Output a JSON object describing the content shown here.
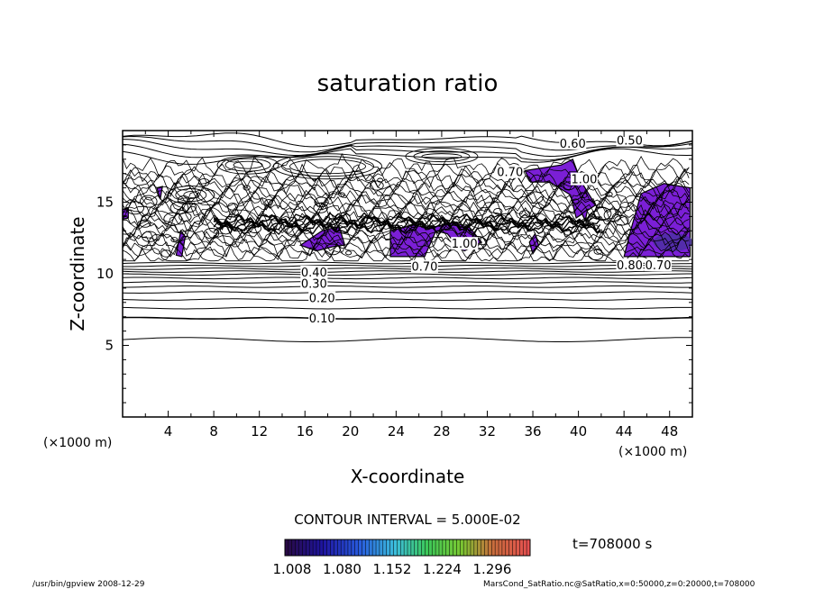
{
  "chart_data": {
    "type": "contour",
    "title": "saturation ratio",
    "xlabel": "X-coordinate",
    "ylabel": "Z-coordinate",
    "x_unit": "(×1000 m)",
    "z_unit": "(×1000 m)",
    "xlim": [
      0,
      50
    ],
    "ylim": [
      0,
      20
    ],
    "x_ticks": [
      "4",
      "8",
      "12",
      "16",
      "20",
      "24",
      "28",
      "32",
      "36",
      "40",
      "44",
      "48"
    ],
    "y_ticks": [
      "5",
      "10",
      "15"
    ],
    "contour_interval_label": "CONTOUR INTERVAL = 5.000E-02",
    "contour_labels": [
      {
        "text": "0.10",
        "x": 17.5,
        "z": 6.8
      },
      {
        "text": "0.20",
        "x": 17.5,
        "z": 8.2
      },
      {
        "text": "0.30",
        "x": 16.8,
        "z": 9.2
      },
      {
        "text": "0.40",
        "x": 16.8,
        "z": 10.0
      },
      {
        "text": "0.70",
        "x": 26.5,
        "z": 10.4
      },
      {
        "text": "0.60",
        "x": 39.5,
        "z": 19.0
      },
      {
        "text": "0.50",
        "x": 44.5,
        "z": 19.2
      },
      {
        "text": "0.70",
        "x": 34.0,
        "z": 17.0
      },
      {
        "text": "1.00",
        "x": 40.5,
        "z": 16.5
      },
      {
        "text": "1.00",
        "x": 30.0,
        "z": 12.0
      },
      {
        "text": "0.80",
        "x": 44.5,
        "z": 10.5
      },
      {
        "text": "0.70",
        "x": 47.0,
        "z": 10.5
      }
    ],
    "colorbar": {
      "ticks": [
        "1.008",
        "1.080",
        "1.152",
        "1.224",
        "1.296"
      ],
      "colormap": "rainbow",
      "low_color": "#2a0a4a",
      "high_color": "#e05050"
    },
    "fill_color_supersaturated": "#7b1fd6",
    "time_label": "t=708000 s"
  },
  "footer": {
    "left": "/usr/bin/gpview  2008-12-29",
    "right": "MarsCond_SatRatio.nc@SatRatio,x=0:50000,z=0:20000,t=708000"
  }
}
